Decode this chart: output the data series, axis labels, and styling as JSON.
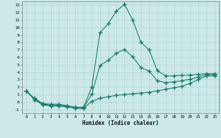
{
  "xlabel": "Humidex (Indice chaleur)",
  "bg_color": "#cce9e8",
  "grid_color": "#aed4d3",
  "line_color": "#1a7a6e",
  "xlim": [
    -0.5,
    23.5
  ],
  "ylim": [
    -1.5,
    13.5
  ],
  "xticks": [
    0,
    1,
    2,
    3,
    4,
    5,
    6,
    7,
    8,
    9,
    10,
    11,
    12,
    13,
    14,
    15,
    16,
    17,
    18,
    19,
    20,
    21,
    22,
    23
  ],
  "yticks": [
    -1,
    0,
    1,
    2,
    3,
    4,
    5,
    6,
    7,
    8,
    9,
    10,
    11,
    12,
    13
  ],
  "series1_x": [
    0,
    1,
    2,
    3,
    4,
    5,
    6,
    7,
    8,
    9,
    10,
    11,
    12,
    13,
    14,
    15,
    16,
    17,
    18,
    19,
    20,
    21,
    22,
    23
  ],
  "series1_y": [
    1.5,
    0.5,
    -0.2,
    -0.3,
    -0.3,
    -0.5,
    -0.7,
    -0.7,
    2.0,
    9.3,
    10.5,
    12.2,
    13.1,
    11.0,
    8.0,
    7.0,
    4.2,
    3.5,
    3.5,
    3.6,
    3.6,
    3.7,
    3.8,
    3.8
  ],
  "series2_x": [
    0,
    1,
    2,
    3,
    4,
    5,
    6,
    7,
    8,
    9,
    10,
    11,
    12,
    13,
    14,
    15,
    16,
    17,
    18,
    19,
    20,
    21,
    22,
    23
  ],
  "series2_y": [
    1.5,
    0.3,
    -0.35,
    -0.55,
    -0.55,
    -0.65,
    -0.85,
    -0.85,
    0.1,
    0.5,
    0.7,
    0.9,
    1.0,
    1.1,
    1.2,
    1.3,
    1.5,
    1.7,
    1.9,
    2.1,
    2.5,
    3.0,
    3.5,
    3.5
  ],
  "series3_x": [
    0,
    1,
    2,
    3,
    4,
    5,
    6,
    7,
    8,
    9,
    10,
    11,
    12,
    13,
    14,
    15,
    16,
    17,
    18,
    19,
    20,
    21,
    22,
    23
  ],
  "series3_y": [
    1.5,
    0.4,
    -0.28,
    -0.42,
    -0.42,
    -0.58,
    -0.78,
    -0.78,
    1.05,
    4.9,
    5.6,
    6.55,
    7.05,
    6.05,
    4.6,
    4.15,
    2.85,
    2.6,
    2.7,
    2.85,
    3.05,
    3.35,
    3.65,
    3.65
  ]
}
